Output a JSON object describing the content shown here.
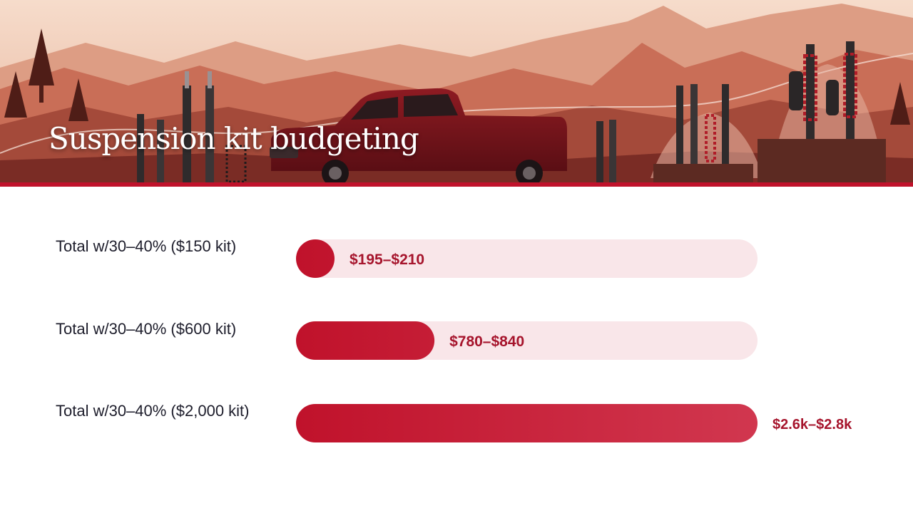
{
  "header": {
    "title": "Suspension kit budgeting"
  },
  "colors": {
    "accent": "#c0122b",
    "track": "#f9e6e9",
    "value_text": "#a6142c",
    "label_text": "#1d1d2b"
  },
  "chart_data": {
    "type": "bar",
    "orientation": "horizontal",
    "categories": [
      "Total w/30–40% ($150 kit)",
      "Total w/30–40% ($600 kit)",
      "Total w/30–40% ($2,000 kit)"
    ],
    "value_labels": [
      "$195–$210",
      "$780–$840",
      "$2.6k–$2.8k"
    ],
    "values": [
      210,
      840,
      2800
    ],
    "xlim": [
      0,
      2800
    ],
    "grid": false,
    "legend": "none"
  }
}
